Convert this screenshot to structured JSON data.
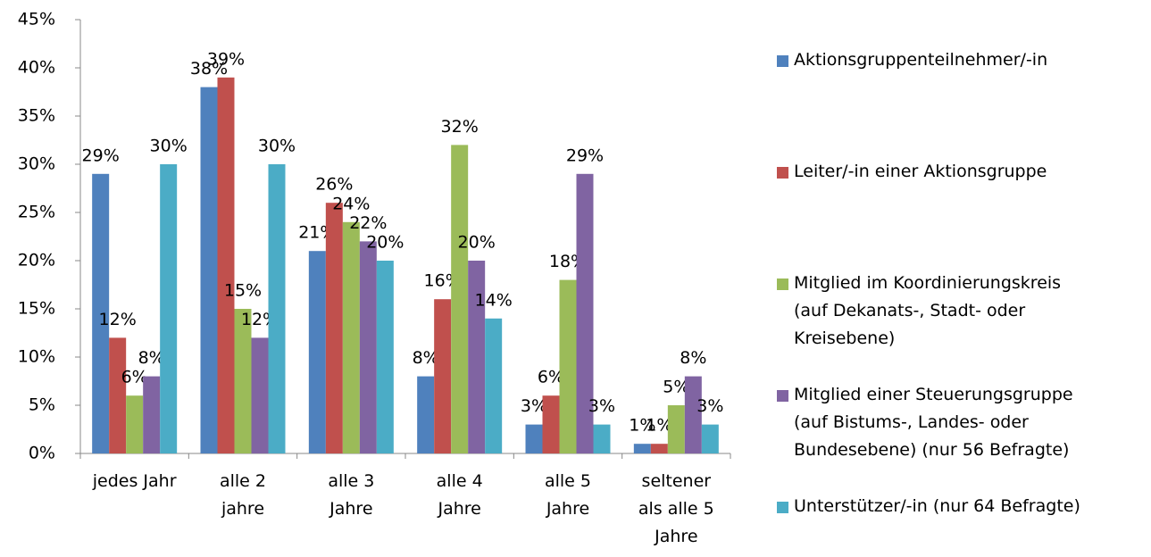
{
  "chart_data": {
    "type": "bar",
    "categories": [
      "jedes Jahr",
      "alle 2\njahre",
      "alle 3\nJahre",
      "alle 4\nJahre",
      "alle 5\nJahre",
      "seltener\nals alle 5\nJahre"
    ],
    "series": [
      {
        "name": "Aktionsgruppenteilnehmer/-in",
        "color": "#4f81bd",
        "values": [
          29,
          38,
          21,
          8,
          3,
          1
        ],
        "value_labels": [
          "29%",
          "38%",
          "21%",
          "8%",
          "3%",
          "1%"
        ]
      },
      {
        "name": "Leiter/-in einer Aktionsgruppe",
        "color": "#c0504d",
        "values": [
          12,
          39,
          26,
          16,
          6,
          1
        ],
        "value_labels": [
          "12%",
          "39%",
          "26%",
          "16%",
          "6%",
          "1%"
        ]
      },
      {
        "name": "Mitglied im Koordinierungskreis\n(auf Dekanats-, Stadt- oder\nKreisebene)",
        "color": "#9bbb59",
        "values": [
          6,
          15,
          24,
          32,
          18,
          5
        ],
        "value_labels": [
          "6%",
          "15%",
          "24%",
          "32%",
          "18%",
          "5%"
        ]
      },
      {
        "name": "Mitglied einer Steuerungsgruppe\n(auf Bistums-, Landes- oder\nBundesebene) (nur 56 Befragte)",
        "color": "#8064a2",
        "values": [
          8,
          12,
          22,
          20,
          29,
          8
        ],
        "value_labels": [
          "8%",
          "12%",
          "22%",
          "20%",
          "29%",
          "8%"
        ]
      },
      {
        "name": "Unterstützer/-in (nur 64 Befragte)",
        "color": "#4bacc6",
        "values": [
          30,
          30,
          20,
          14,
          3,
          3
        ],
        "value_labels": [
          "30%",
          "30%",
          "20%",
          "14%",
          "3%",
          "3%"
        ]
      }
    ],
    "ylim": [
      0,
      45
    ],
    "yticks": [
      {
        "value": 0,
        "label": "0%"
      },
      {
        "value": 5,
        "label": "5%"
      },
      {
        "value": 10,
        "label": "10%"
      },
      {
        "value": 15,
        "label": "15%"
      },
      {
        "value": 20,
        "label": "20%"
      },
      {
        "value": 25,
        "label": "25%"
      },
      {
        "value": 30,
        "label": "30%"
      },
      {
        "value": 35,
        "label": "35%"
      },
      {
        "value": 40,
        "label": "40%"
      },
      {
        "value": 45,
        "label": "45%"
      }
    ],
    "grid": false,
    "legend": "right"
  }
}
